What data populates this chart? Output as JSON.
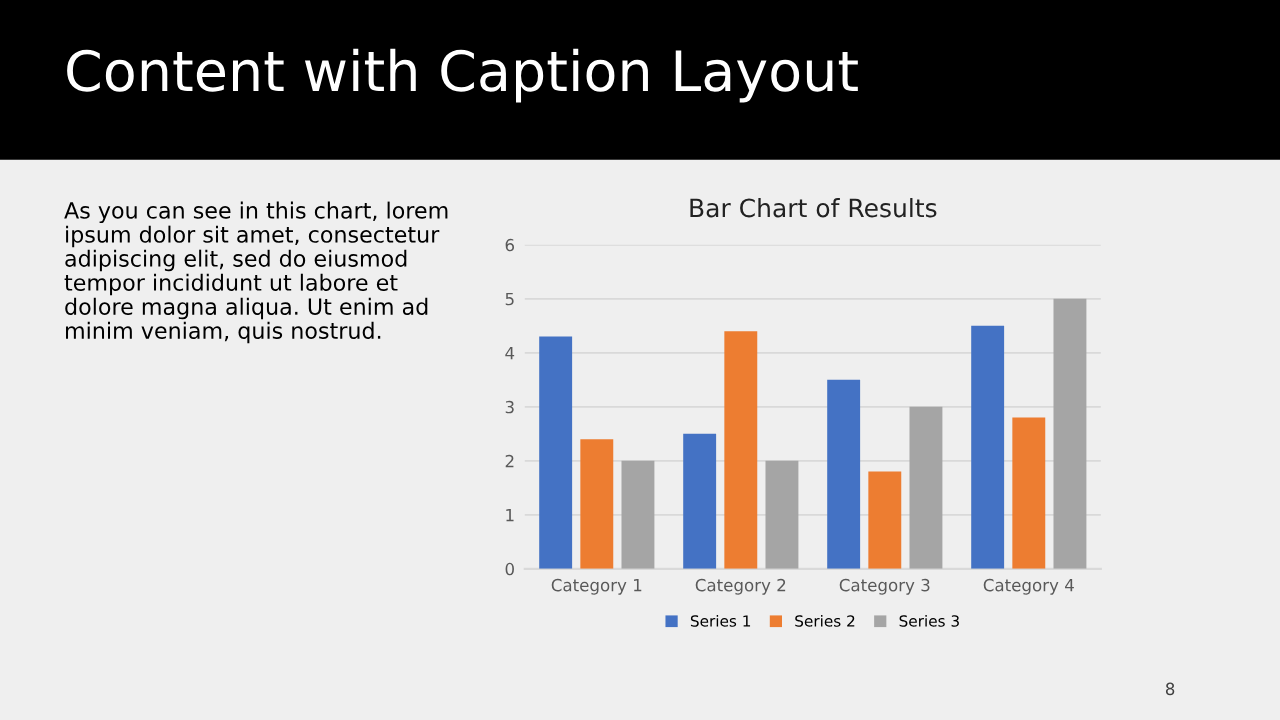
{
  "chart_data": {
    "type": "bar",
    "title": "Bar Chart of Results",
    "categories": [
      "Category 1",
      "Category 2",
      "Category 3",
      "Category 4"
    ],
    "series": [
      {
        "name": "Series 1",
        "color": "#4472c4",
        "values": [
          4.3,
          2.5,
          3.5,
          4.5
        ]
      },
      {
        "name": "Series 2",
        "color": "#ed7d31",
        "values": [
          2.4,
          4.4,
          1.8,
          2.8
        ]
      },
      {
        "name": "Series 3",
        "color": "#a5a5a5",
        "values": [
          2,
          2,
          3,
          5
        ]
      }
    ],
    "ylim": [
      0,
      6
    ],
    "yticks": [
      0,
      1,
      2,
      3,
      4,
      5,
      6
    ],
    "grid": "y",
    "legend": "bottom",
    "annotations": [
      "Content with Caption Layout",
      "As you can see in this chart, lorem\nipsum dolor sit amet, consectetur\nadipiscing elit, sed do eiusmod\ntempor incididunt ut labore et\ndolore magna aliqua. Ut enim ad\nminim veniam, quis nostrud.",
      "8"
    ]
  }
}
